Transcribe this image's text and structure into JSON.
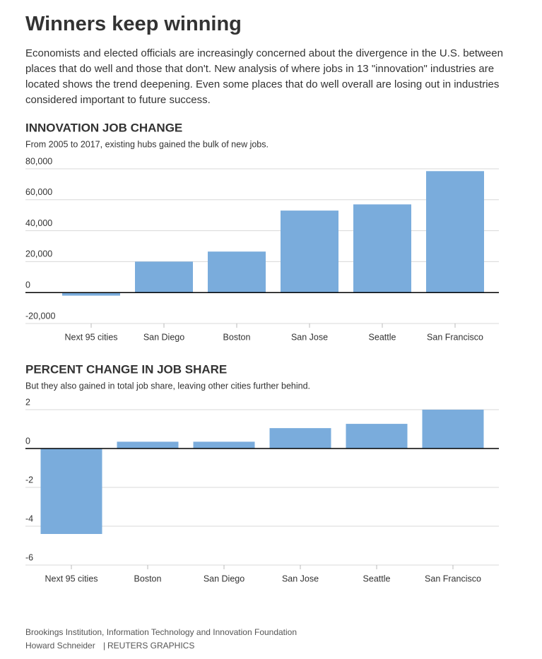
{
  "title": "Winners keep winning",
  "description": "Economists and elected officials are increasingly concerned about the divergence in the U.S. between places that do well and those that don't. New analysis of where jobs in 13 \"innovation\" industries are located shows the trend deepening. Even some places that do well overall are losing out in industries considered important to future success.",
  "chart_data": [
    {
      "type": "bar",
      "title": "INNOVATION JOB CHANGE",
      "subtitle": "From 2005 to 2017, existing hubs gained the bulk of new jobs.",
      "categories": [
        "Next 95 cities",
        "San Diego",
        "Boston",
        "San Jose",
        "Seattle",
        "San Francisco"
      ],
      "values": [
        -2000,
        20000,
        26500,
        53000,
        57000,
        78500
      ],
      "color": "#7aacdc",
      "ylim": [
        -20000,
        80000
      ],
      "yticks": [
        {
          "value": -20000,
          "label": "-20,000"
        },
        0,
        {
          "value": 20000,
          "label": "20,000"
        },
        {
          "value": 40000,
          "label": "40,000"
        },
        {
          "value": 60000,
          "label": "60,000"
        },
        {
          "value": 80000,
          "label": "80,000"
        }
      ],
      "grid": true
    },
    {
      "type": "bar",
      "title": "PERCENT CHANGE IN JOB SHARE",
      "subtitle": "But they also gained in total job share, leaving other cities further behind.",
      "categories": [
        "Next 95 cities",
        "Boston",
        "San Diego",
        "San Jose",
        "Seattle",
        "San Francisco"
      ],
      "values": [
        -4.4,
        0.35,
        0.35,
        1.05,
        1.27,
        2.0
      ],
      "color": "#7aacdc",
      "ylim": [
        -6,
        2
      ],
      "yticks": [
        -6,
        -4,
        -2,
        0,
        2
      ],
      "grid": true
    }
  ],
  "source": "Brookings Institution, Information Technology and Innovation Foundation",
  "credit": [
    "Howard Schneider",
    "REUTERS GRAPHICS"
  ]
}
